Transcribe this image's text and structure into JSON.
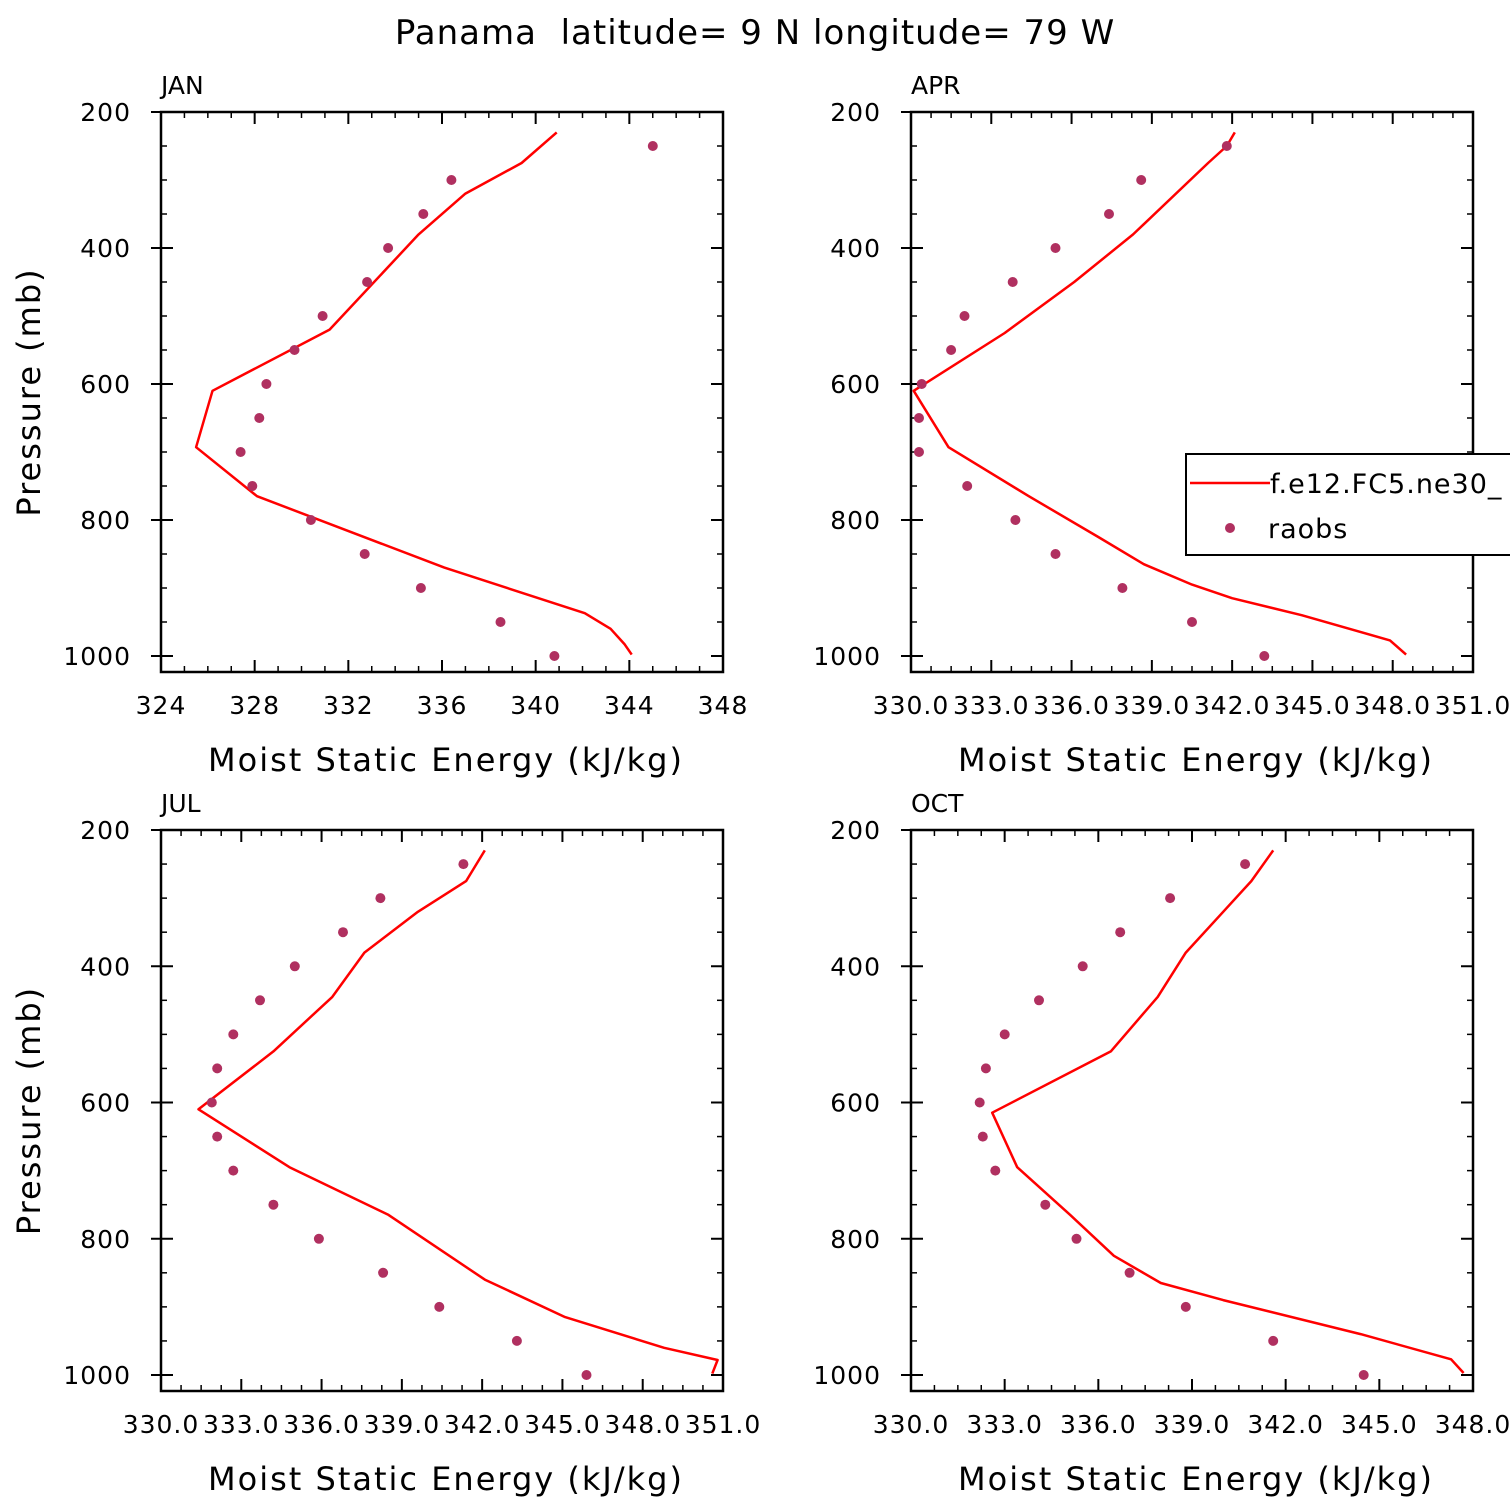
{
  "figure_title": "Panama  latitude= 9 N longitude= 79 W",
  "legend": {
    "model_label": "f.e12.FC5.ne30_",
    "obs_label": "raobs",
    "model_color": "#ff0000",
    "obs_color": "#b03060"
  },
  "chart_data": [
    {
      "type": "line",
      "title": "JAN",
      "xlabel": "Moist Static Energy (kJ/kg)",
      "ylabel": "Pressure (mb)",
      "xlim": [
        324,
        348
      ],
      "ylim": [
        1000,
        200
      ],
      "x_ticks": [
        324,
        328,
        332,
        336,
        340,
        344,
        348
      ],
      "x_tick_labels": [
        "324",
        "328",
        "332",
        "336",
        "340",
        "344",
        "348"
      ],
      "y_ticks": [
        200,
        400,
        600,
        800,
        1000
      ],
      "y_tick_labels": [
        "200",
        "400",
        "600",
        "800",
        "1000"
      ],
      "series": [
        {
          "name": "f.e12.FC5.ne30_",
          "kind": "line",
          "x": [
            340.9,
            339.4,
            337.0,
            335.0,
            331.2,
            326.2,
            325.5,
            328.1,
            336.1,
            342.1,
            343.2,
            343.8,
            344.1
          ],
          "y": [
            230,
            275,
            320,
            380,
            520,
            610,
            693,
            765,
            870,
            937,
            960,
            983,
            998
          ]
        },
        {
          "name": "raobs",
          "kind": "scatter",
          "x": [
            345.0,
            336.4,
            335.2,
            333.7,
            332.8,
            330.9,
            329.7,
            328.5,
            328.2,
            327.4,
            327.9,
            330.4,
            332.7,
            335.1,
            338.5,
            340.8
          ],
          "y": [
            250,
            300,
            350,
            400,
            450,
            500,
            550,
            600,
            650,
            700,
            750,
            800,
            850,
            900,
            950,
            1000
          ]
        }
      ]
    },
    {
      "type": "line",
      "title": "APR",
      "xlabel": "Moist Static Energy (kJ/kg)",
      "ylabel": "",
      "xlim": [
        330.0,
        351.0
      ],
      "ylim": [
        1000,
        200
      ],
      "x_ticks": [
        330.0,
        333.0,
        336.0,
        339.0,
        342.0,
        345.0,
        348.0,
        351.0
      ],
      "x_tick_labels": [
        "330.0",
        "333.0",
        "336.0",
        "339.0",
        "342.0",
        "345.0",
        "348.0",
        "351.0"
      ],
      "y_ticks": [
        200,
        400,
        600,
        800,
        1000
      ],
      "y_tick_labels": [
        "200",
        "400",
        "600",
        "800",
        "1000"
      ],
      "series": [
        {
          "name": "f.e12.FC5.ne30_",
          "kind": "line",
          "x": [
            342.1,
            341.8,
            341.1,
            338.3,
            336.1,
            333.5,
            330.1,
            331.4,
            334.4,
            337.0,
            338.7,
            340.5,
            342.0,
            344.6,
            347.9,
            348.5
          ],
          "y": [
            230,
            250,
            275,
            380,
            450,
            525,
            610,
            693,
            765,
            825,
            865,
            895,
            915,
            940,
            977,
            998
          ]
        },
        {
          "name": "raobs",
          "kind": "scatter",
          "x": [
            341.8,
            338.6,
            337.4,
            335.4,
            333.8,
            332.0,
            331.5,
            330.4,
            330.3,
            330.3,
            332.1,
            333.9,
            335.4,
            337.9,
            340.5,
            343.2
          ],
          "y": [
            250,
            300,
            350,
            400,
            450,
            500,
            550,
            600,
            650,
            700,
            750,
            800,
            850,
            900,
            950,
            1000
          ]
        }
      ]
    },
    {
      "type": "line",
      "title": "JUL",
      "xlabel": "Moist Static Energy (kJ/kg)",
      "ylabel": "Pressure (mb)",
      "xlim": [
        330.0,
        351.0
      ],
      "ylim": [
        1000,
        200
      ],
      "x_ticks": [
        330.0,
        333.0,
        336.0,
        339.0,
        342.0,
        345.0,
        348.0,
        351.0
      ],
      "x_tick_labels": [
        "330.0",
        "333.0",
        "336.0",
        "339.0",
        "342.0",
        "345.0",
        "348.0",
        "351.0"
      ],
      "y_ticks": [
        200,
        400,
        600,
        800,
        1000
      ],
      "y_tick_labels": [
        "200",
        "400",
        "600",
        "800",
        "1000"
      ],
      "series": [
        {
          "name": "f.e12.FC5.ne30_",
          "kind": "line",
          "x": [
            342.1,
            341.4,
            339.6,
            337.6,
            336.4,
            334.2,
            331.4,
            334.8,
            338.5,
            342.1,
            345.1,
            348.8,
            350.8,
            350.6
          ],
          "y": [
            230,
            275,
            320,
            380,
            445,
            525,
            610,
            695,
            765,
            860,
            915,
            960,
            978,
            998
          ]
        },
        {
          "name": "raobs",
          "kind": "scatter",
          "x": [
            341.3,
            338.2,
            336.8,
            335.0,
            333.7,
            332.7,
            332.1,
            331.9,
            332.1,
            332.7,
            334.2,
            335.9,
            338.3,
            340.4,
            343.3,
            345.9
          ],
          "y": [
            250,
            300,
            350,
            400,
            450,
            500,
            550,
            600,
            650,
            700,
            750,
            800,
            850,
            900,
            950,
            1000
          ]
        }
      ]
    },
    {
      "type": "line",
      "title": "OCT",
      "xlabel": "Moist Static Energy (kJ/kg)",
      "ylabel": "",
      "xlim": [
        330.0,
        348.0
      ],
      "ylim": [
        1000,
        200
      ],
      "x_ticks": [
        330.0,
        333.0,
        336.0,
        339.0,
        342.0,
        345.0,
        348.0
      ],
      "x_tick_labels": [
        "330.0",
        "333.0",
        "336.0",
        "339.0",
        "342.0",
        "345.0",
        "348.0"
      ],
      "y_ticks": [
        200,
        400,
        600,
        800,
        1000
      ],
      "y_tick_labels": [
        "200",
        "400",
        "600",
        "800",
        "1000"
      ],
      "series": [
        {
          "name": "f.e12.FC5.ne30_",
          "kind": "line",
          "x": [
            341.6,
            340.9,
            340.0,
            338.8,
            337.9,
            336.4,
            332.6,
            333.4,
            335.1,
            336.5,
            338.0,
            340.0,
            344.4,
            347.3,
            347.7
          ],
          "y": [
            230,
            275,
            320,
            380,
            445,
            525,
            615,
            695,
            765,
            825,
            865,
            890,
            940,
            977,
            997
          ]
        },
        {
          "name": "raobs",
          "kind": "scatter",
          "x": [
            340.7,
            338.3,
            336.7,
            335.5,
            334.1,
            333.0,
            332.4,
            332.2,
            332.3,
            332.7,
            334.3,
            335.3,
            337.0,
            338.8,
            341.6,
            344.5
          ],
          "y": [
            250,
            300,
            350,
            400,
            450,
            500,
            550,
            600,
            650,
            700,
            750,
            800,
            850,
            900,
            950,
            1000
          ]
        }
      ]
    }
  ]
}
